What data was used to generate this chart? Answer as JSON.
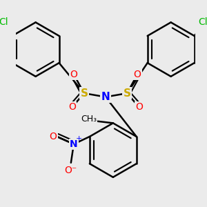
{
  "bg_color": "#ebebeb",
  "bond_color": "#000000",
  "bond_width": 1.8,
  "colors": {
    "S": "#ccaa00",
    "N": "#0000ff",
    "O": "#ff0000",
    "Cl": "#00bb00",
    "C": "#000000"
  },
  "font_size": 10
}
